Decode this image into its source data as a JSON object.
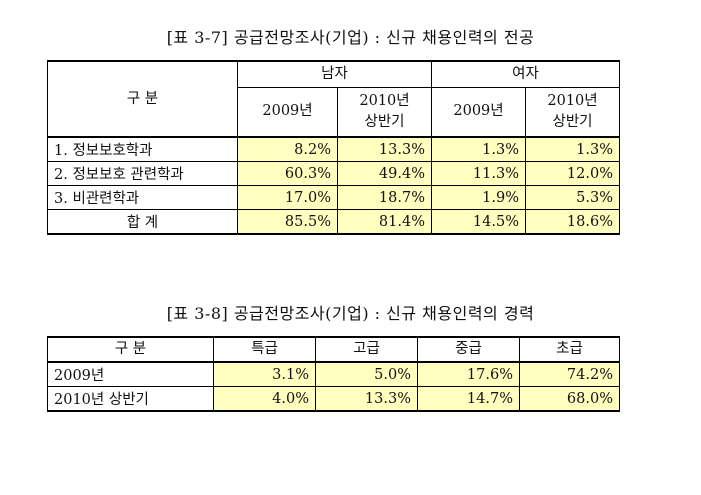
{
  "table1": {
    "caption": "[표 3-7] 공급전망조사(기업) : 신규 채용인력의 전공",
    "stub_header": "구 분",
    "groups": [
      "남자",
      "여자"
    ],
    "subheaders": [
      "2009년",
      "2010년 상반기",
      "2009년",
      "2010년 상반기"
    ],
    "subheader_lines": [
      [
        "2009년"
      ],
      [
        "2010년",
        "상반기"
      ],
      [
        "2009년"
      ],
      [
        "2010년",
        "상반기"
      ]
    ],
    "rows": [
      {
        "label": "1. 정보보호학과",
        "values": [
          "8.2%",
          "13.3%",
          "1.3%",
          "1.3%"
        ]
      },
      {
        "label": "2. 정보보호 관련학과",
        "values": [
          "60.3%",
          "49.4%",
          "11.3%",
          "12.0%"
        ]
      },
      {
        "label": "3. 비관련학과",
        "values": [
          "17.0%",
          "18.7%",
          "1.9%",
          "5.3%"
        ]
      },
      {
        "label": "합 계",
        "values": [
          "85.5%",
          "81.4%",
          "14.5%",
          "18.6%"
        ]
      }
    ]
  },
  "table2": {
    "caption": "[표 3-8] 공급전망조사(기업) : 신규 채용인력의 경력",
    "stub_header": "구 분",
    "headers": [
      "특급",
      "고급",
      "중급",
      "초급"
    ],
    "rows": [
      {
        "label": "2009년",
        "values": [
          "3.1%",
          "5.0%",
          "17.6%",
          "74.2%"
        ]
      },
      {
        "label": "2010년 상반기",
        "values": [
          "4.0%",
          "13.3%",
          "14.7%",
          "68.0%"
        ]
      }
    ]
  },
  "colors": {
    "highlight": "#ffffc0",
    "border": "#000000"
  }
}
